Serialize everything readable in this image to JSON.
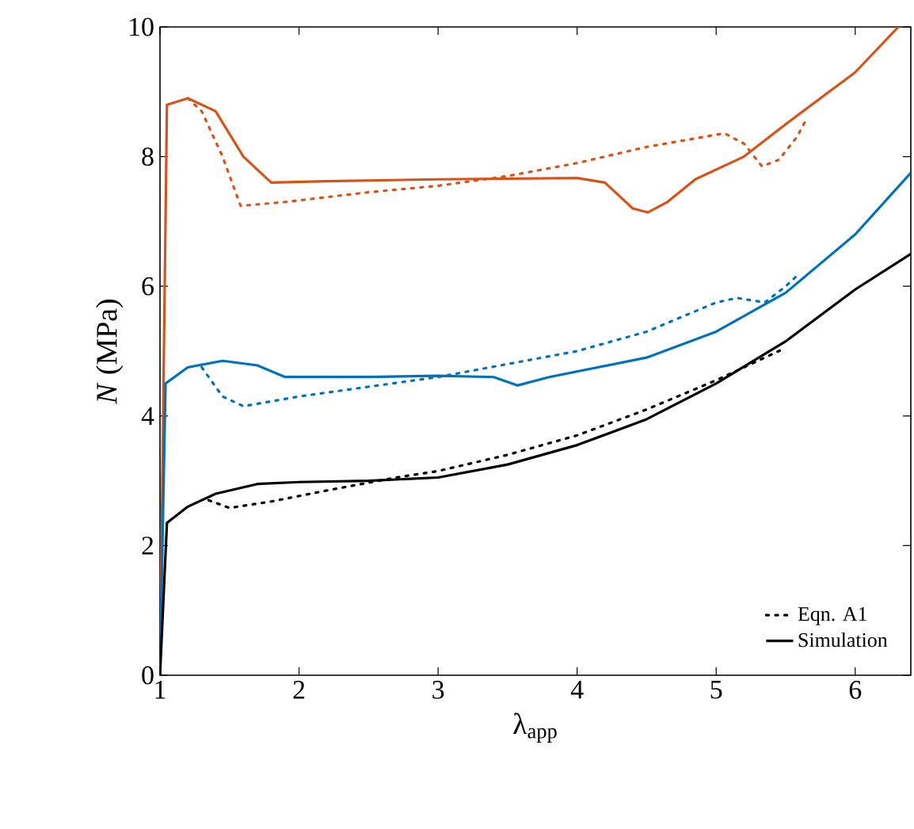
{
  "chart_data": {
    "type": "line",
    "xlabel": "λ$_{app}$",
    "ylabel": "*N* (MPa)",
    "xlim": [
      1,
      6.4
    ],
    "ylim": [
      0,
      10
    ],
    "xticks": [
      1,
      2,
      3,
      4,
      5,
      6
    ],
    "yticks": [
      0,
      2,
      4,
      6,
      8,
      10
    ],
    "grid": false,
    "legend": "bottom right",
    "marker": "none",
    "series": [
      {
        "name": "Simulation",
        "color": "#000000",
        "line_style": "solid",
        "x": [
          1,
          1.05,
          1.2,
          1.4,
          1.7,
          2,
          2.5,
          3,
          3.5,
          4,
          4.5,
          5,
          5.5,
          6,
          6.4
        ],
        "values": [
          0,
          2.35,
          2.6,
          2.8,
          2.95,
          2.98,
          3.0,
          3.05,
          3.25,
          3.55,
          3.95,
          4.5,
          5.15,
          5.95,
          6.5
        ]
      },
      {
        "name": "Eqn. A1",
        "color": "#000000",
        "line_style": "dotted",
        "x": [
          1.35,
          1.5,
          1.8,
          2.2,
          2.7,
          3,
          3.5,
          4,
          4.5,
          5,
          5.3,
          5.5
        ],
        "values": [
          2.7,
          2.58,
          2.68,
          2.85,
          3.05,
          3.15,
          3.4,
          3.7,
          4.1,
          4.55,
          4.85,
          5.05
        ]
      },
      {
        "color": "#0072bd",
        "line_style": "solid",
        "x": [
          1,
          1.04,
          1.2,
          1.45,
          1.7,
          1.9,
          2.5,
          3,
          3.4,
          3.57,
          3.8,
          4.5,
          5,
          5.5,
          6,
          6.4
        ],
        "values": [
          0,
          4.5,
          4.75,
          4.85,
          4.78,
          4.6,
          4.6,
          4.62,
          4.6,
          4.47,
          4.6,
          4.9,
          5.3,
          5.9,
          6.8,
          7.75
        ]
      },
      {
        "color": "#0072bd",
        "line_style": "dotted",
        "x": [
          1.3,
          1.45,
          1.6,
          2,
          2.5,
          3,
          3.5,
          4,
          4.5,
          5,
          5.15,
          5.35,
          5.5,
          5.6
        ],
        "values": [
          4.75,
          4.3,
          4.15,
          4.3,
          4.45,
          4.6,
          4.8,
          5.0,
          5.3,
          5.75,
          5.82,
          5.75,
          6.0,
          6.2
        ]
      },
      {
        "color": "#d95319",
        "line_style": "solid",
        "x": [
          1,
          1.05,
          1.2,
          1.4,
          1.6,
          1.8,
          2.2,
          3,
          4,
          4.2,
          4.4,
          4.51,
          4.65,
          4.85,
          5.2,
          5.5,
          6,
          6.31
        ],
        "values": [
          0,
          8.8,
          8.9,
          8.7,
          8.0,
          7.6,
          7.62,
          7.65,
          7.67,
          7.6,
          7.2,
          7.14,
          7.3,
          7.65,
          8.0,
          8.5,
          9.3,
          10
        ]
      },
      {
        "color": "#d95319",
        "line_style": "dotted",
        "x": [
          1.2,
          1.3,
          1.45,
          1.58,
          1.9,
          2.5,
          3,
          3.5,
          4,
          4.5,
          5.06,
          5.2,
          5.33,
          5.45,
          5.58,
          5.65
        ],
        "values": [
          8.9,
          8.7,
          8.0,
          7.24,
          7.3,
          7.45,
          7.55,
          7.7,
          7.9,
          8.15,
          8.36,
          8.2,
          7.85,
          7.95,
          8.3,
          8.58
        ]
      }
    ]
  }
}
